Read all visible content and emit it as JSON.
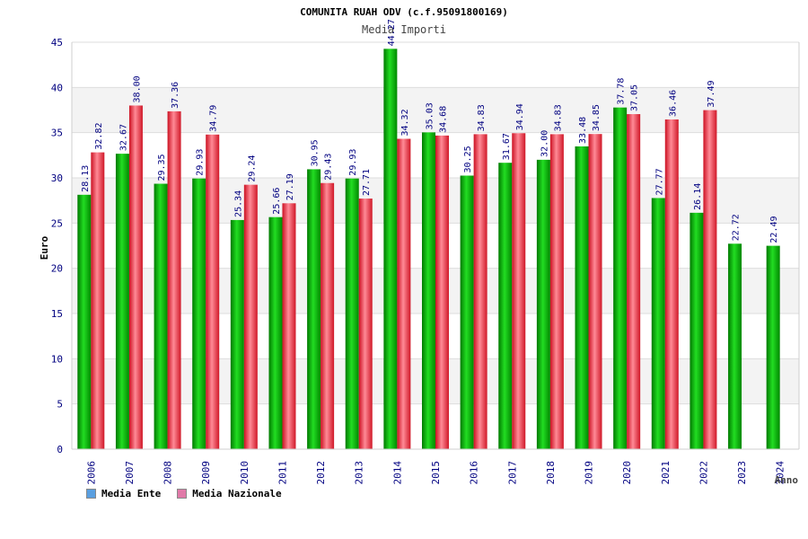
{
  "chart_data": {
    "type": "bar",
    "title": "COMUNITA RUAH ODV (c.f.95091800169)",
    "subtitle": "Media Importi",
    "xlabel": "Anno",
    "ylabel": "Euro",
    "ylim": [
      0,
      45
    ],
    "yticks": [
      0,
      5,
      10,
      15,
      20,
      25,
      30,
      35,
      40,
      45
    ],
    "grid": true,
    "legend_position": "bottom-left",
    "categories": [
      "2006",
      "2007",
      "2008",
      "2009",
      "2010",
      "2011",
      "2012",
      "2013",
      "2014",
      "2015",
      "2016",
      "2017",
      "2018",
      "2019",
      "2020",
      "2021",
      "2022",
      "2023",
      "2024"
    ],
    "series": [
      {
        "name": "Media Ente",
        "color": "#00bb00",
        "legend_color": "#5a9fe0",
        "values": [
          28.13,
          32.67,
          29.35,
          29.93,
          25.34,
          25.66,
          30.95,
          29.93,
          44.27,
          35.03,
          30.25,
          31.67,
          32.0,
          33.48,
          37.78,
          27.77,
          26.14,
          22.72,
          22.49
        ],
        "labels": [
          "28.13",
          "32.67",
          "29.35",
          "29.93",
          "25.34",
          "25.66",
          "30.95",
          "29.93",
          "44.27",
          "35.03",
          "30.25",
          "31.67",
          "32.00",
          "33.48",
          "37.78",
          "27.77",
          "26.14",
          "22.72",
          "22.49"
        ]
      },
      {
        "name": "Media Nazionale",
        "color": "#ee2233",
        "legend_color": "#e07aa8",
        "values": [
          32.82,
          38.0,
          37.36,
          34.79,
          29.24,
          27.19,
          29.43,
          27.71,
          34.32,
          34.68,
          34.83,
          34.94,
          34.83,
          34.85,
          37.05,
          36.46,
          37.49,
          null,
          null
        ],
        "labels": [
          "32.82",
          "38.00",
          "37.36",
          "34.79",
          "29.24",
          "27.19",
          "29.43",
          "27.71",
          "34.32",
          "34.68",
          "34.83",
          "34.94",
          "34.83",
          "34.85",
          "37.05",
          "36.46",
          "37.49",
          "",
          ""
        ]
      }
    ]
  }
}
